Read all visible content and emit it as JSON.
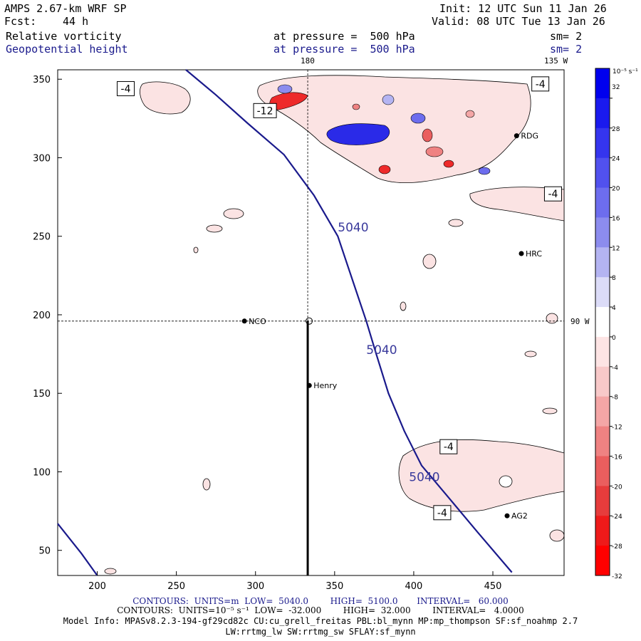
{
  "header": {
    "model": "AMPS 2.67-km WRF SP",
    "init": "Init: 12 UTC Sun 11 Jan 26",
    "fcst_label": "Fcst:",
    "fcst_value": "44 h",
    "valid": "Valid: 08 UTC Tue 13 Jan 26",
    "field1_name": "Relative vorticity",
    "field1_level": "at pressure =  500 hPa",
    "field1_sm": "sm= 2",
    "field2_name": "Geopotential height",
    "field2_level": "at pressure =  500 hPa",
    "field2_sm": "sm= 2"
  },
  "colors": {
    "height_contour": "#1a1a8c",
    "positive_max": "#0000ff",
    "negative_max": "#ff0000"
  },
  "chart_data": {
    "type": "contour-map",
    "x_axis": {
      "range": [
        175,
        495
      ],
      "ticks": [
        200,
        250,
        300,
        350,
        400,
        450
      ]
    },
    "y_axis": {
      "range": [
        34,
        356
      ],
      "ticks": [
        50,
        100,
        150,
        200,
        250,
        300,
        350
      ]
    },
    "meridian_labels": [
      "180",
      "135 W",
      "90 W"
    ],
    "crosshair": {
      "x": 333,
      "y": 196
    },
    "height_contour_label": "5040",
    "height_contour": [
      [
        256,
        356
      ],
      [
        275,
        340
      ],
      [
        295,
        322
      ],
      [
        318,
        302
      ],
      [
        337,
        276
      ],
      [
        352,
        250
      ],
      [
        362,
        220
      ],
      [
        370,
        196
      ],
      [
        376,
        176
      ],
      [
        384,
        150
      ],
      [
        394,
        126
      ],
      [
        405,
        104
      ],
      [
        420,
        86
      ],
      [
        440,
        62
      ],
      [
        462,
        36
      ]
    ],
    "height_contour_sw": [
      [
        175,
        67
      ],
      [
        190,
        48
      ],
      [
        200,
        34
      ]
    ],
    "height_labels": [
      {
        "text": "5040",
        "x": 352,
        "y": 253
      },
      {
        "text": "5040",
        "x": 370,
        "y": 175
      },
      {
        "text": "5040",
        "x": 397,
        "y": 94
      }
    ],
    "vorticity_labels": [
      {
        "text": "-4",
        "x": 218,
        "y": 344
      },
      {
        "text": "-4",
        "x": 480,
        "y": 347
      },
      {
        "text": "-12",
        "x": 306,
        "y": 330
      },
      {
        "text": "-4",
        "x": 488,
        "y": 277
      },
      {
        "text": "-4",
        "x": 422,
        "y": 116
      },
      {
        "text": "-4",
        "x": 418,
        "y": 74
      }
    ],
    "stations": [
      {
        "name": "NCO",
        "x": 293,
        "y": 196
      },
      {
        "name": "Henry",
        "x": 334,
        "y": 155
      },
      {
        "name": "RDG",
        "x": 465,
        "y": 314
      },
      {
        "name": "HRC",
        "x": 468,
        "y": 239
      },
      {
        "name": "AG2",
        "x": 459,
        "y": 72
      }
    ],
    "colorbar": {
      "unit_label": "10⁻⁵ s⁻¹",
      "levels": [
        32,
        28,
        24,
        20,
        16,
        12,
        8,
        4,
        0,
        -4,
        -8,
        -12,
        -16,
        -20,
        -24,
        -28,
        -32
      ],
      "colors": [
        "#0000ee",
        "#1a1aee",
        "#3535ee",
        "#5151ee",
        "#6d6dee",
        "#8c8cee",
        "#b4b4f2",
        "#dcdcf8",
        "#ffffff",
        "#fde4e4",
        "#f8c9c9",
        "#f4a6a6",
        "#ef8282",
        "#ea5e5e",
        "#e63c3c",
        "#ee1a1a",
        "#ff0000"
      ]
    }
  },
  "footer": {
    "line1": "CONTOURS:  UNITS=m  LOW=  5040.0        HIGH=  5100.0       INTERVAL=   60.000",
    "line2": "CONTOURS:  UNITS=10⁻⁵ s⁻¹  LOW=  -32.000        HIGH=  32.000        INTERVAL=   4.0000",
    "line3": "Model Info: MPASv8.2.3-194-gf29cd82c CU:cu_grell_freitas PBL:bl_mynn MP:mp_thompson SF:sf_noahmp 2.7",
    "line4": "LW:rrtmg_lw SW:rrtmg_sw SFLAY:sf_mynn"
  }
}
